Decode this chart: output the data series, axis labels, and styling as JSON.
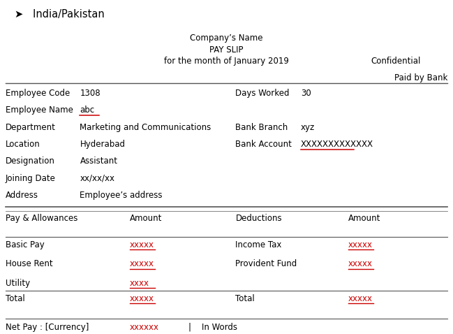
{
  "title_line1": "Company’s Name",
  "title_line2": "PAY SLIP",
  "title_line3": "for the month of January 2019",
  "confidential": "Confidential",
  "paid_by_bank": "Paid by Bank",
  "header_label": "➤   India/Pakistan",
  "emp_fields_left": [
    [
      "Employee Code",
      "1308"
    ],
    [
      "Employee Name",
      "abc"
    ],
    [
      "Department",
      "Marketing and Communications"
    ],
    [
      "Location",
      "Hyderabad"
    ],
    [
      "Designation",
      "Assistant"
    ],
    [
      "Joining Date",
      "xx/xx/xx"
    ],
    [
      "Address",
      "Employee’s address"
    ]
  ],
  "emp_fields_right": [
    [
      "Days Worked",
      "30"
    ],
    [
      "",
      ""
    ],
    [
      "Bank Branch",
      "xyz"
    ],
    [
      "Bank Account",
      "XXXXXXXXXXXXX"
    ],
    [
      "",
      ""
    ],
    [
      "",
      ""
    ],
    [
      "",
      ""
    ]
  ],
  "table_headers": [
    "Pay & Allowances",
    "Amount",
    "Deductions",
    "Amount"
  ],
  "pay_rows": [
    [
      "Basic Pay",
      "xxxxx",
      "Income Tax",
      "xxxxx"
    ],
    [
      "House Rent",
      "xxxxx",
      "Provident Fund",
      "xxxxx"
    ],
    [
      "Utility",
      "xxxx",
      "",
      ""
    ]
  ],
  "total_row": [
    "Total",
    "xxxxx",
    "Total",
    "xxxxx"
  ],
  "net_pay_row": [
    "Net Pay : [Currency]",
    "xxxxxx",
    "|",
    "In Words"
  ],
  "bg_color": "#ffffff",
  "text_color": "#000000",
  "red_color": "#cc0000",
  "line_color": "#555555",
  "font_size": 8.5
}
